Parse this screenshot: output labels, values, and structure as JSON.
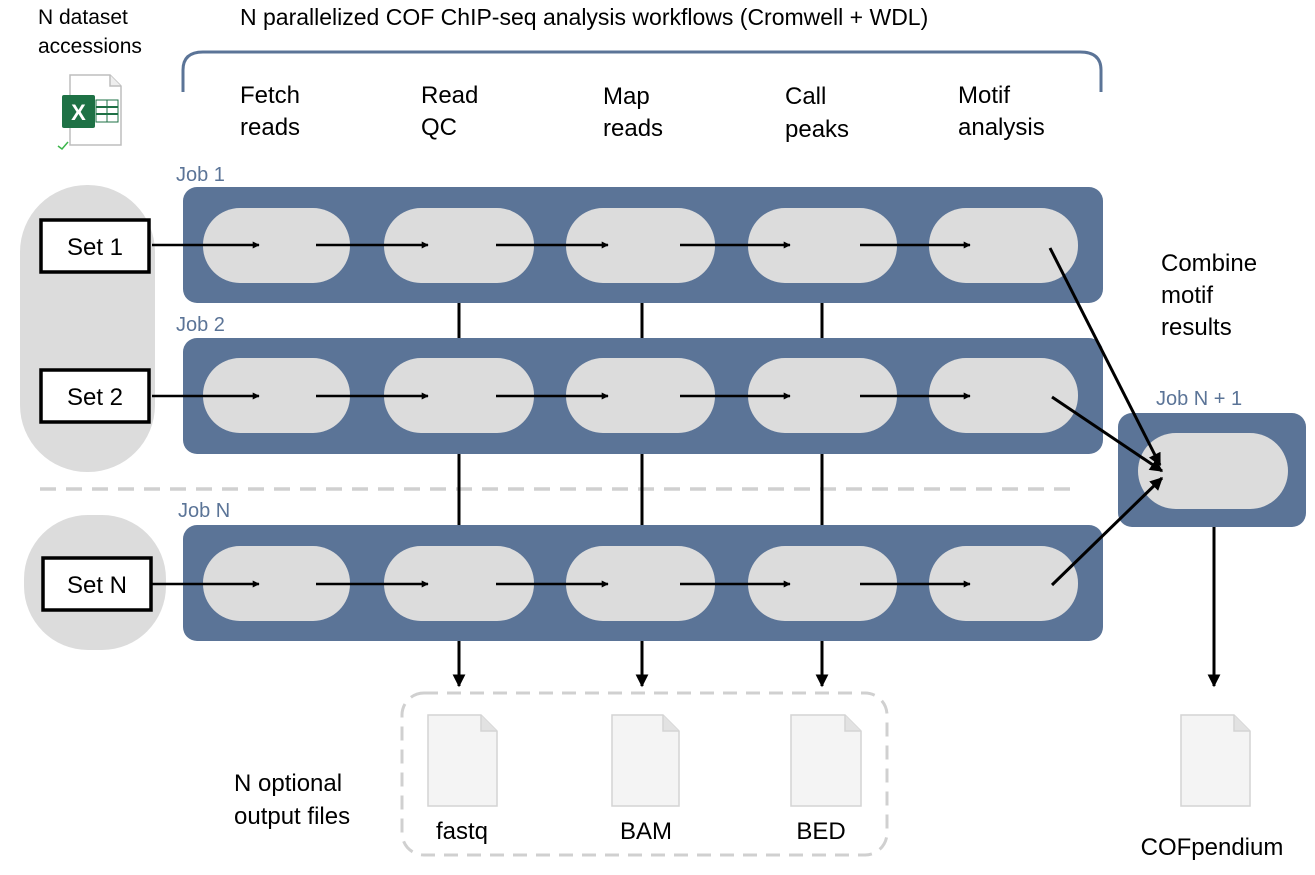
{
  "header": {
    "accessions_label_line1": "N dataset",
    "accessions_label_line2": "accessions",
    "workflow_title": "N parallelized COF ChIP-seq analysis workflows (Cromwell + WDL)"
  },
  "stages": [
    {
      "line1": "Fetch",
      "line2": "reads"
    },
    {
      "line1": "Read",
      "line2": "QC"
    },
    {
      "line1": "Map",
      "line2": "reads"
    },
    {
      "line1": "Call",
      "line2": "peaks"
    },
    {
      "line1": "Motif",
      "line2": "analysis"
    }
  ],
  "jobs": [
    {
      "label": "Job 1",
      "set_label": "Set 1"
    },
    {
      "label": "Job 2",
      "set_label": "Set 2"
    },
    {
      "label": "Job N",
      "set_label": "Set N"
    }
  ],
  "combine": {
    "title_line1": "Combine",
    "title_line2": "motif",
    "title_line3": "results",
    "job_label": "Job N + 1"
  },
  "outputs": {
    "label_line1": "N optional",
    "label_line2": "output files",
    "files": [
      "fastq",
      "BAM",
      "BED"
    ]
  },
  "final_output": "COFpendium",
  "icons": {
    "spreadsheet": "excel-file-icon",
    "document": "document-icon"
  },
  "colors": {
    "job_bar": "#5b7497",
    "stage_pill": "#dcdcdc",
    "set_bubble": "#dcdcdc",
    "label_blue": "#5b7497",
    "dashed": "#d0d0d0",
    "excel_green": "#1e7145"
  }
}
